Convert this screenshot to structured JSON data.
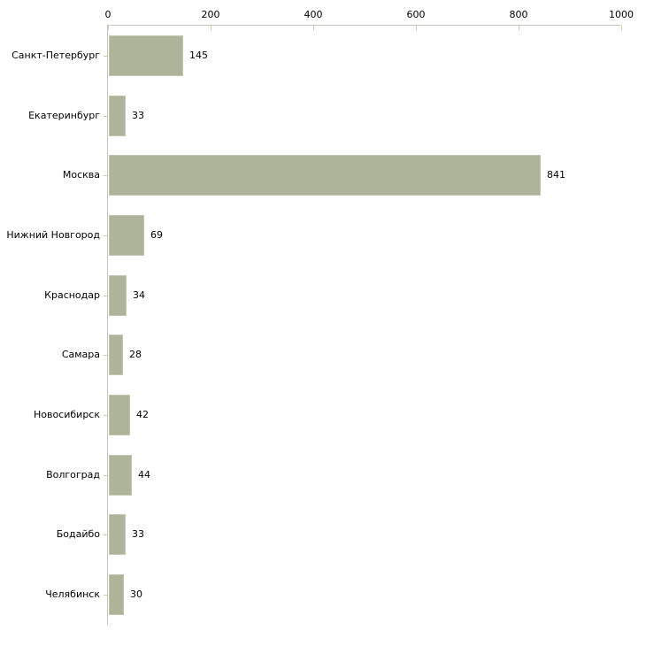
{
  "chart_data": {
    "type": "bar",
    "orientation": "horizontal",
    "title": "",
    "xlabel": "",
    "ylabel": "",
    "categories": [
      "Санкт-Петербург",
      "Екатеринбург",
      "Москва",
      "Нижний Новгород",
      "Краснодар",
      "Самара",
      "Новосибирск",
      "Волгоград",
      "Бодайбо",
      "Челябинск"
    ],
    "values": [
      145,
      33,
      841,
      69,
      34,
      28,
      42,
      44,
      33,
      30
    ],
    "value_labels": [
      "145",
      "33",
      "841",
      "69",
      "34",
      "28",
      "42",
      "44",
      "33",
      "30"
    ],
    "x_ticks": [
      0,
      200,
      400,
      600,
      800,
      1000
    ],
    "x_tick_labels": [
      "0",
      "200",
      "400",
      "600",
      "800",
      "1000"
    ],
    "xlim": [
      0,
      1000
    ],
    "grid": false,
    "legend": false,
    "axis_position": "top-left",
    "colors": {
      "bar_fill": "#adb49a",
      "bar_border": "#c2c8af",
      "axis_line": "#c6c6c6",
      "tick_mark": "#cdcdad",
      "text": "#000000",
      "background": "#ffffff"
    }
  }
}
